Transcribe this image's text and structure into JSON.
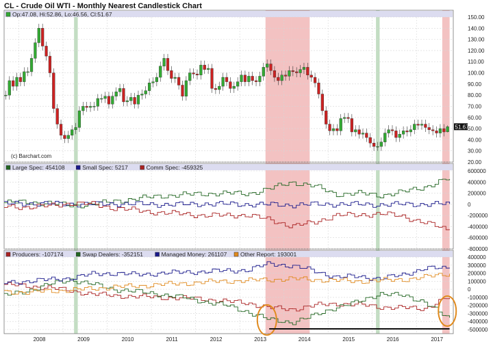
{
  "title": "CL - Crude Oil WTI - Monthly Nearest Candlestick Chart",
  "credit": "(c) Barchart.com",
  "colors": {
    "up": "#33aa33",
    "down": "#cc2222",
    "red_band": "#e36d6d",
    "green_band": "#6fae6f",
    "header_bg": "#dcdcf0",
    "orange": "#e08a1e"
  },
  "panels": [
    {
      "header": [
        {
          "marker": "#33aa33",
          "text": "Op:47.08, Hi:52.86, Lo:46.56, Cl:51.67"
        }
      ]
    },
    {
      "header": [
        {
          "marker": "#226622",
          "text": "Large Spec: 454108"
        },
        {
          "marker": "#1a1a8c",
          "text": "Small Spec: 5217"
        },
        {
          "marker": "#aa2222",
          "text": "Comm Spec: -459325"
        }
      ]
    },
    {
      "header": [
        {
          "marker": "#aa2222",
          "text": "Producers: -107174"
        },
        {
          "marker": "#226622",
          "text": "Swap Dealers: -352151"
        },
        {
          "marker": "#1a1a8c",
          "text": "Managed Money: 261107"
        },
        {
          "marker": "#e08a1e",
          "text": "Other Report: 193001"
        }
      ]
    }
  ],
  "chart_data": [
    {
      "type": "candlestick",
      "title": "CL - Crude Oil WTI - Monthly Nearest Candlestick Chart",
      "y_ticks": [
        "150.00",
        "140.00",
        "130.00",
        "120.00",
        "110.00",
        "100.00",
        "90.00",
        "80.00",
        "70.00",
        "60.00",
        "50.00",
        "40.00",
        "30.00",
        "20.00"
      ],
      "ylim": [
        20,
        150
      ],
      "last_label": "51.67",
      "last": {
        "open": 47.08,
        "high": 52.86,
        "low": 46.56,
        "close": 51.67
      },
      "x_ticks": [
        "2008",
        "2009",
        "2010",
        "2011",
        "2012",
        "2013",
        "2014",
        "2015",
        "2016",
        "2017"
      ],
      "close_series": [
        [
          "2007-09",
          80
        ],
        [
          "2007-10",
          93
        ],
        [
          "2007-11",
          88
        ],
        [
          "2007-12",
          96
        ],
        [
          "2008-01",
          92
        ],
        [
          "2008-02",
          101
        ],
        [
          "2008-03",
          101
        ],
        [
          "2008-04",
          113
        ],
        [
          "2008-05",
          127
        ],
        [
          "2008-06",
          140
        ],
        [
          "2008-07",
          124
        ],
        [
          "2008-08",
          115
        ],
        [
          "2008-09",
          100
        ],
        [
          "2008-10",
          68
        ],
        [
          "2008-11",
          54
        ],
        [
          "2008-12",
          44
        ],
        [
          "2009-01",
          41
        ],
        [
          "2009-02",
          44
        ],
        [
          "2009-03",
          49
        ],
        [
          "2009-04",
          51
        ],
        [
          "2009-05",
          66
        ],
        [
          "2009-06",
          70
        ],
        [
          "2009-07",
          69
        ],
        [
          "2009-08",
          70
        ],
        [
          "2009-09",
          70
        ],
        [
          "2009-10",
          77
        ],
        [
          "2009-11",
          77
        ],
        [
          "2009-12",
          79
        ],
        [
          "2010-01",
          72
        ],
        [
          "2010-02",
          79
        ],
        [
          "2010-03",
          83
        ],
        [
          "2010-04",
          86
        ],
        [
          "2010-05",
          74
        ],
        [
          "2010-06",
          75
        ],
        [
          "2010-07",
          78
        ],
        [
          "2010-08",
          72
        ],
        [
          "2010-09",
          80
        ],
        [
          "2010-10",
          81
        ],
        [
          "2010-11",
          84
        ],
        [
          "2010-12",
          91
        ],
        [
          "2011-01",
          92
        ],
        [
          "2011-02",
          96
        ],
        [
          "2011-03",
          106
        ],
        [
          "2011-04",
          113
        ],
        [
          "2011-05",
          102
        ],
        [
          "2011-06",
          95
        ],
        [
          "2011-07",
          96
        ],
        [
          "2011-08",
          89
        ],
        [
          "2011-09",
          79
        ],
        [
          "2011-10",
          93
        ],
        [
          "2011-11",
          100
        ],
        [
          "2011-12",
          99
        ],
        [
          "2012-01",
          98
        ],
        [
          "2012-02",
          107
        ],
        [
          "2012-03",
          103
        ],
        [
          "2012-04",
          104
        ],
        [
          "2012-05",
          86
        ],
        [
          "2012-06",
          85
        ],
        [
          "2012-07",
          88
        ],
        [
          "2012-08",
          96
        ],
        [
          "2012-09",
          92
        ],
        [
          "2012-10",
          86
        ],
        [
          "2012-11",
          88
        ],
        [
          "2012-12",
          92
        ],
        [
          "2013-01",
          98
        ],
        [
          "2013-02",
          92
        ],
        [
          "2013-03",
          97
        ],
        [
          "2013-04",
          93
        ],
        [
          "2013-05",
          92
        ],
        [
          "2013-06",
          97
        ],
        [
          "2013-07",
          105
        ],
        [
          "2013-08",
          108
        ],
        [
          "2013-09",
          102
        ],
        [
          "2013-10",
          96
        ],
        [
          "2013-11",
          93
        ],
        [
          "2013-12",
          98
        ],
        [
          "2014-01",
          97
        ],
        [
          "2014-02",
          102
        ],
        [
          "2014-03",
          101
        ],
        [
          "2014-04",
          100
        ],
        [
          "2014-05",
          103
        ],
        [
          "2014-06",
          105
        ],
        [
          "2014-07",
          98
        ],
        [
          "2014-08",
          96
        ],
        [
          "2014-09",
          91
        ],
        [
          "2014-10",
          81
        ],
        [
          "2014-11",
          66
        ],
        [
          "2014-12",
          54
        ],
        [
          "2015-01",
          48
        ],
        [
          "2015-02",
          50
        ],
        [
          "2015-03",
          48
        ],
        [
          "2015-04",
          59
        ],
        [
          "2015-05",
          60
        ],
        [
          "2015-06",
          59
        ],
        [
          "2015-07",
          47
        ],
        [
          "2015-08",
          49
        ],
        [
          "2015-09",
          45
        ],
        [
          "2015-10",
          46
        ],
        [
          "2015-11",
          42
        ],
        [
          "2015-12",
          37
        ],
        [
          "2016-01",
          34
        ],
        [
          "2016-02",
          34
        ],
        [
          "2016-03",
          38
        ],
        [
          "2016-04",
          46
        ],
        [
          "2016-05",
          49
        ],
        [
          "2016-06",
          48
        ],
        [
          "2016-07",
          42
        ],
        [
          "2016-08",
          45
        ],
        [
          "2016-09",
          48
        ],
        [
          "2016-10",
          47
        ],
        [
          "2016-11",
          49
        ],
        [
          "2016-12",
          54
        ],
        [
          "2017-01",
          53
        ],
        [
          "2017-02",
          54
        ],
        [
          "2017-03",
          51
        ],
        [
          "2017-04",
          49
        ],
        [
          "2017-05",
          48
        ],
        [
          "2017-06",
          46
        ],
        [
          "2017-07",
          50
        ],
        [
          "2017-08",
          47
        ],
        [
          "2017-09",
          51.67
        ]
      ],
      "shaded_bands": [
        {
          "color": "green",
          "from": "2009-04",
          "to": "2009-05"
        },
        {
          "color": "red",
          "from": "2013-08",
          "to": "2014-02"
        },
        {
          "color": "red",
          "from": "2014-02",
          "to": "2014-03"
        },
        {
          "color": "red",
          "from": "2014-03",
          "to": "2014-08"
        },
        {
          "color": "green",
          "from": "2016-02",
          "to": "2016-03"
        },
        {
          "color": "red",
          "from": "2017-08",
          "to": "2017-10"
        }
      ]
    },
    {
      "type": "line",
      "y_ticks": [
        "600000",
        "400000",
        "200000",
        "0",
        "-200000",
        "-400000",
        "-600000",
        "-800000"
      ],
      "ylim": [
        -800000,
        600000
      ],
      "x": [
        "2007-09",
        "2008-03",
        "2008-09",
        "2009-03",
        "2009-09",
        "2010-03",
        "2010-09",
        "2011-03",
        "2011-09",
        "2012-03",
        "2012-09",
        "2013-03",
        "2013-09",
        "2014-03",
        "2014-09",
        "2015-03",
        "2015-09",
        "2016-03",
        "2016-09",
        "2017-03",
        "2017-09"
      ],
      "series": [
        {
          "name": "Large Spec",
          "color": "#226622",
          "values": [
            30000,
            40000,
            20000,
            -20000,
            0,
            60000,
            100000,
            150000,
            170000,
            190000,
            200000,
            190000,
            280000,
            400000,
            330000,
            180000,
            200000,
            160000,
            220000,
            310000,
            454108
          ]
        },
        {
          "name": "Small Spec",
          "color": "#1a1a8c",
          "values": [
            10000,
            15000,
            10000,
            5000,
            0,
            10000,
            5000,
            0,
            -5000,
            10000,
            5000,
            0,
            -5000,
            -10000,
            0,
            5000,
            0,
            -5000,
            0,
            5000,
            5217
          ]
        },
        {
          "name": "Comm Spec",
          "color": "#aa2222",
          "values": [
            -40000,
            -50000,
            -30000,
            20000,
            0,
            -70000,
            -110000,
            -150000,
            -170000,
            -200000,
            -200000,
            -190000,
            -280000,
            -390000,
            -330000,
            -190000,
            -200000,
            -160000,
            -220000,
            -320000,
            -459325
          ]
        }
      ]
    },
    {
      "type": "line",
      "y_ticks": [
        "400000",
        "300000",
        "200000",
        "100000",
        "0",
        "-100000",
        "-200000",
        "-300000",
        "-400000",
        "-500000"
      ],
      "ylim": [
        -500000,
        400000
      ],
      "x": [
        "2007-09",
        "2008-03",
        "2008-09",
        "2009-03",
        "2009-09",
        "2010-03",
        "2010-09",
        "2011-03",
        "2011-09",
        "2012-03",
        "2012-09",
        "2013-03",
        "2013-09",
        "2014-03",
        "2014-09",
        "2015-03",
        "2015-09",
        "2016-03",
        "2016-09",
        "2017-03",
        "2017-09"
      ],
      "series": [
        {
          "name": "Producers",
          "color": "#aa2222",
          "values": [
            60000,
            40000,
            20000,
            -20000,
            -60000,
            -80000,
            -90000,
            -100000,
            -110000,
            -120000,
            -150000,
            -170000,
            -230000,
            -250000,
            -200000,
            -180000,
            -190000,
            -220000,
            -230000,
            -240000,
            -107174
          ]
        },
        {
          "name": "Swap Dealers",
          "color": "#226622",
          "values": [
            -80000,
            -20000,
            60000,
            120000,
            60000,
            0,
            -30000,
            -60000,
            -100000,
            -150000,
            -200000,
            -280000,
            -380000,
            -410000,
            -330000,
            -220000,
            -160000,
            -50000,
            -80000,
            -150000,
            -352151
          ]
        },
        {
          "name": "Managed Money",
          "color": "#1a1a8c",
          "values": [
            80000,
            100000,
            120000,
            140000,
            190000,
            200000,
            180000,
            200000,
            210000,
            220000,
            230000,
            240000,
            320000,
            290000,
            230000,
            150000,
            160000,
            130000,
            180000,
            260000,
            261107
          ]
        },
        {
          "name": "Other Report",
          "color": "#e08a1e",
          "values": [
            -30000,
            -40000,
            -20000,
            -10000,
            10000,
            30000,
            40000,
            60000,
            70000,
            90000,
            100000,
            110000,
            120000,
            130000,
            120000,
            110000,
            100000,
            110000,
            120000,
            150000,
            193001
          ]
        }
      ]
    }
  ]
}
